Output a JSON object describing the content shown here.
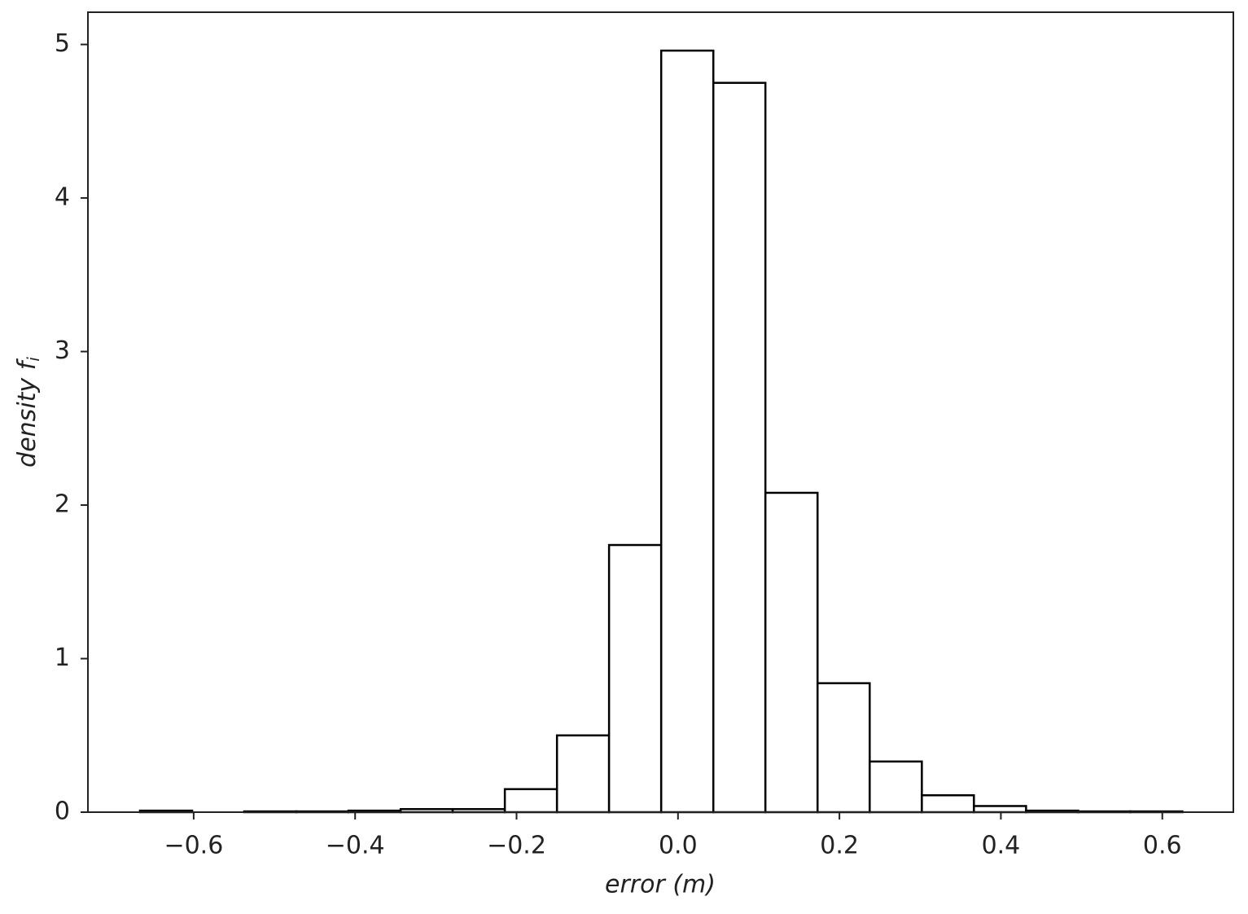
{
  "chart_data": {
    "type": "histogram",
    "xlabel": "error (m)",
    "ylabel": {
      "text": "density f",
      "subscript": "i"
    },
    "bins": [
      -0.6665,
      -0.6019,
      -0.5374,
      -0.4728,
      -0.4082,
      -0.3436,
      -0.2791,
      -0.2145,
      -0.1499,
      -0.0854,
      -0.0208,
      0.0438,
      0.1083,
      0.1729,
      0.2375,
      0.3021,
      0.3666,
      0.4312,
      0.4958,
      0.5604,
      0.6249
    ],
    "counts": [
      0.01,
      0,
      0.005,
      0.005,
      0.01,
      0.02,
      0.02,
      0.15,
      0.5,
      1.74,
      4.96,
      4.75,
      2.08,
      0.84,
      0.33,
      0.11,
      0.04,
      0.01,
      0.005,
      0.005
    ],
    "color": "#ffffff",
    "edgecolor": "#000000",
    "xlim": [
      -0.731,
      0.688
    ],
    "ylim": [
      0,
      5.21
    ],
    "xticks": [
      {
        "value": -0.6,
        "label": "−0.6"
      },
      {
        "value": -0.4,
        "label": "−0.4"
      },
      {
        "value": -0.2,
        "label": "−0.2"
      },
      {
        "value": 0,
        "label": "0.0"
      },
      {
        "value": 0.2,
        "label": "0.2"
      },
      {
        "value": 0.4,
        "label": "0.4"
      },
      {
        "value": 0.6,
        "label": "0.6"
      }
    ],
    "yticks": [
      0,
      1,
      2,
      3,
      4,
      5
    ],
    "grid": false
  }
}
